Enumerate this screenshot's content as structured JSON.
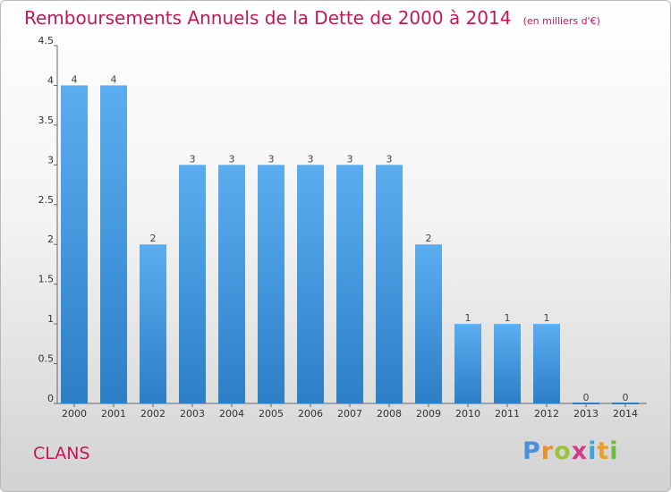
{
  "title": "Remboursements Annuels de la Dette de 2000 à 2014",
  "unit_note": "(en milliers d'€)",
  "commune": "CLANS",
  "logo": {
    "letters": [
      "P",
      "r",
      "o",
      "x",
      "i",
      "t",
      "i"
    ],
    "colors": [
      "#4a8fd8",
      "#e8902a",
      "#9bc43a",
      "#d23a8b",
      "#3aa6d8",
      "#e8a02a",
      "#6abf3a"
    ]
  },
  "colors": {
    "bar_light": "#5aaef0",
    "bar_dark": "#2c7fc6",
    "accent": "#c2185b"
  },
  "chart_data": {
    "type": "bar",
    "categories": [
      "2000",
      "2001",
      "2002",
      "2003",
      "2004",
      "2005",
      "2006",
      "2007",
      "2008",
      "2009",
      "2010",
      "2011",
      "2012",
      "2013",
      "2014"
    ],
    "values": [
      4,
      4,
      2,
      3,
      3,
      3,
      3,
      3,
      3,
      2,
      1,
      1,
      1,
      0,
      0
    ],
    "data_labels": [
      "4",
      "4",
      "2",
      "3",
      "3",
      "3",
      "3",
      "3",
      "3",
      "2",
      "1",
      "1",
      "1",
      "0",
      "0"
    ],
    "yticks": [
      "0",
      "0.5",
      "1",
      "1.5",
      "2",
      "2.5",
      "3",
      "3.5",
      "4",
      "4.5"
    ],
    "ylim": [
      0,
      4.5
    ],
    "grid": false,
    "xlabel": "",
    "ylabel": ""
  }
}
